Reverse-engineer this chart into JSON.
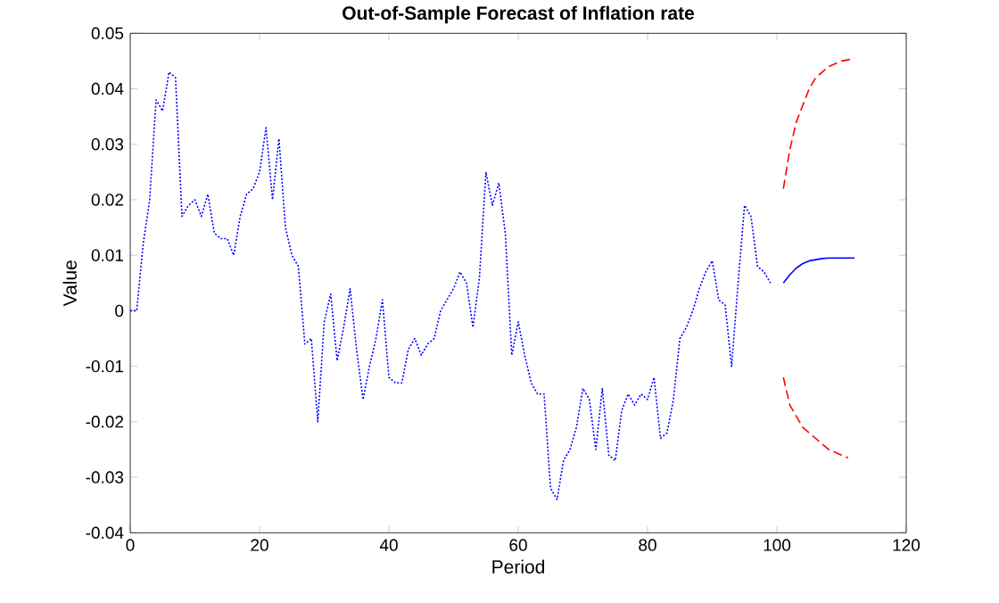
{
  "chart_data": {
    "type": "line",
    "title": "Out-of-Sample Forecast of Inflation rate",
    "xlabel": "Period",
    "ylabel": "Value",
    "xlim": [
      0,
      120
    ],
    "xticks": [
      0,
      20,
      40,
      60,
      80,
      100,
      120
    ],
    "ylim": [
      -0.04,
      0.05
    ],
    "yticks": [
      -0.04,
      -0.03,
      -0.02,
      -0.01,
      0,
      0.01,
      0.02,
      0.03,
      0.04,
      0.05
    ],
    "marker": "none",
    "series": [
      {
        "color": "#0000ff",
        "line_style": "dotted",
        "x": [
          0,
          1,
          2,
          3,
          4,
          5,
          6,
          7,
          8,
          9,
          10,
          11,
          12,
          13,
          14,
          15,
          16,
          17,
          18,
          19,
          20,
          21,
          22,
          23,
          24,
          25,
          26,
          27,
          28,
          29,
          30,
          31,
          32,
          33,
          34,
          35,
          36,
          37,
          38,
          39,
          40,
          41,
          42,
          43,
          44,
          45,
          46,
          47,
          48,
          49,
          50,
          51,
          52,
          53,
          54,
          55,
          56,
          57,
          58,
          59,
          60,
          61,
          62,
          63,
          64,
          65,
          66,
          67,
          68,
          69,
          70,
          71,
          72,
          73,
          74,
          75,
          76,
          77,
          78,
          79,
          80,
          81,
          82,
          83,
          84,
          85,
          86,
          87,
          88,
          89,
          90,
          91,
          92,
          93,
          94,
          95,
          96,
          97,
          98,
          99
        ],
        "values": [
          0,
          0,
          0.012,
          0.02,
          0.038,
          0.036,
          0.043,
          0.042,
          0.017,
          0.019,
          0.02,
          0.017,
          0.021,
          0.014,
          0.013,
          0.013,
          0.01,
          0.017,
          0.021,
          0.022,
          0.025,
          0.033,
          0.02,
          0.031,
          0.015,
          0.01,
          0.008,
          -0.006,
          -0.005,
          -0.02,
          -0.002,
          0.003,
          -0.009,
          -0.003,
          0.004,
          -0.007,
          -0.016,
          -0.01,
          -0.005,
          0.002,
          -0.012,
          -0.013,
          -0.013,
          -0.007,
          -0.005,
          -0.008,
          -0.006,
          -0.005,
          0,
          0.002,
          0.004,
          0.007,
          0.005,
          -0.003,
          0.006,
          0.025,
          0.019,
          0.023,
          0.014,
          -0.008,
          -0.002,
          -0.008,
          -0.013,
          -0.015,
          -0.015,
          -0.032,
          -0.034,
          -0.027,
          -0.025,
          -0.021,
          -0.014,
          -0.016,
          -0.025,
          -0.014,
          -0.026,
          -0.027,
          -0.018,
          -0.015,
          -0.017,
          -0.015,
          -0.016,
          -0.012,
          -0.023,
          -0.022,
          -0.016,
          -0.005,
          -0.003,
          0,
          0.004,
          0.007,
          0.009,
          0.002,
          0.001,
          -0.01,
          0.005,
          0.019,
          0.017,
          0.008,
          0.007,
          0.005
        ]
      },
      {
        "color": "#0000ff",
        "line_style": "solid",
        "x": [
          101,
          102,
          103,
          104,
          105,
          106,
          107,
          108,
          109,
          110,
          111,
          112
        ],
        "values": [
          0.005,
          0.0065,
          0.0077,
          0.0085,
          0.009,
          0.0092,
          0.0094,
          0.0095,
          0.0095,
          0.0095,
          0.0095,
          0.0095
        ]
      },
      {
        "color": "#ff0000",
        "line_style": "dashed",
        "x": [
          101,
          102,
          103,
          104,
          105,
          106,
          107,
          108,
          109,
          110,
          111,
          112
        ],
        "values": [
          0.022,
          0.029,
          0.034,
          0.037,
          0.04,
          0.042,
          0.043,
          0.044,
          0.0445,
          0.045,
          0.0452,
          0.0455
        ]
      },
      {
        "color": "#ff0000",
        "line_style": "dashed",
        "x": [
          101,
          102,
          103,
          104,
          105,
          106,
          107,
          108,
          109,
          110,
          111
        ],
        "values": [
          -0.012,
          -0.017,
          -0.019,
          -0.021,
          -0.022,
          -0.023,
          -0.024,
          -0.025,
          -0.0255,
          -0.026,
          -0.0265
        ]
      }
    ]
  }
}
